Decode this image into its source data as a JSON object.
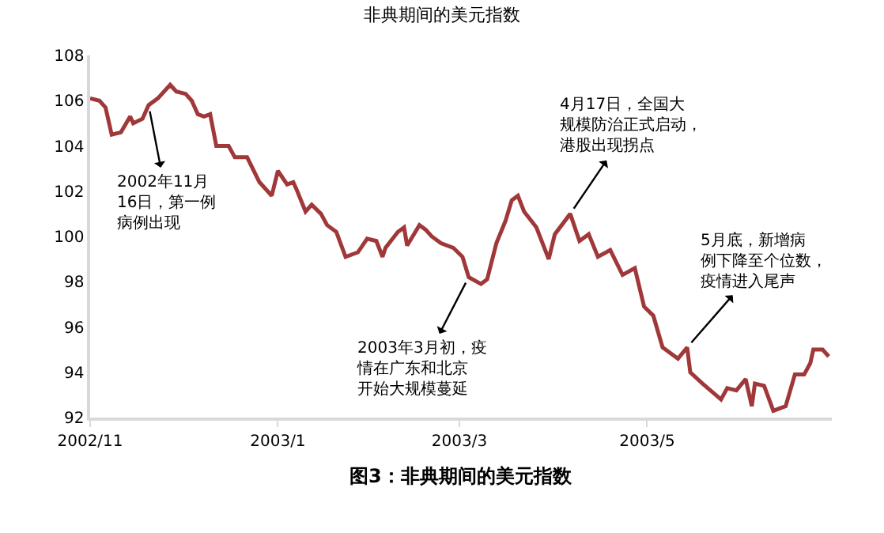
{
  "chart_data": {
    "type": "line",
    "title": "非典期间的美元指数",
    "x": [
      "2002-11-01",
      "2002-11-04",
      "2002-11-06",
      "2002-11-08",
      "2002-11-11",
      "2002-11-14",
      "2002-11-15",
      "2002-11-18",
      "2002-11-20",
      "2002-11-23",
      "2002-11-27",
      "2002-11-29",
      "2002-12-02",
      "2002-12-04",
      "2002-12-06",
      "2002-12-08",
      "2002-12-10",
      "2002-12-12",
      "2002-12-16",
      "2002-12-18",
      "2002-12-22",
      "2002-12-26",
      "2002-12-30",
      "2003-01-01",
      "2003-01-04",
      "2003-01-06",
      "2003-01-07",
      "2003-01-10",
      "2003-01-12",
      "2003-01-15",
      "2003-01-17",
      "2003-01-20",
      "2003-01-23",
      "2003-01-27",
      "2003-01-28",
      "2003-01-30",
      "2003-02-02",
      "2003-02-04",
      "2003-02-05",
      "2003-02-09",
      "2003-02-11",
      "2003-02-12",
      "2003-02-16",
      "2003-02-18",
      "2003-02-20",
      "2003-02-23",
      "2003-02-27",
      "2003-03-02",
      "2003-03-04",
      "2003-03-08",
      "2003-03-10",
      "2003-03-13",
      "2003-03-16",
      "2003-03-18",
      "2003-03-20",
      "2003-03-22",
      "2003-03-26",
      "2003-03-30",
      "2003-04-01",
      "2003-04-06",
      "2003-04-09",
      "2003-04-12",
      "2003-04-15",
      "2003-04-19",
      "2003-04-23",
      "2003-04-27",
      "2003-04-30",
      "2003-05-03",
      "2003-05-06",
      "2003-05-11",
      "2003-05-14",
      "2003-05-15",
      "2003-05-19",
      "2003-05-25",
      "2003-05-27",
      "2003-05-30",
      "2003-06-02",
      "2003-06-04",
      "2003-06-05",
      "2003-06-08",
      "2003-06-11",
      "2003-06-15",
      "2003-06-18",
      "2003-06-21",
      "2003-06-23",
      "2003-06-24",
      "2003-06-27",
      "2003-06-29"
    ],
    "series": [
      {
        "color": "#a0383a",
        "values": [
          106.1,
          106.0,
          105.7,
          104.5,
          104.6,
          105.3,
          105.0,
          105.2,
          105.8,
          106.1,
          106.7,
          106.4,
          106.3,
          106.0,
          105.4,
          105.3,
          105.4,
          104.0,
          104.0,
          103.5,
          103.5,
          102.4,
          101.8,
          102.9,
          102.3,
          102.4,
          102.1,
          101.1,
          101.4,
          101.0,
          100.5,
          100.2,
          99.1,
          99.3,
          99.5,
          99.9,
          99.8,
          99.1,
          99.5,
          100.2,
          100.4,
          99.6,
          100.5,
          100.3,
          100.0,
          99.7,
          99.5,
          99.1,
          98.2,
          97.9,
          98.1,
          99.7,
          100.7,
          101.6,
          101.8,
          101.1,
          100.4,
          99.0,
          100.1,
          101.0,
          99.8,
          100.1,
          99.1,
          99.4,
          98.3,
          98.6,
          96.9,
          96.5,
          95.1,
          94.6,
          95.1,
          94.0,
          93.5,
          92.8,
          93.3,
          93.2,
          93.7,
          92.5,
          93.5,
          93.4,
          92.3,
          92.5,
          93.9,
          93.9,
          94.4,
          95.0,
          95.0,
          94.7
        ]
      }
    ],
    "xlim": [
      "2002-11-01",
      "2003-06-30"
    ],
    "xticks": [
      {
        "value": "2002-11-01",
        "label": "2002/11"
      },
      {
        "value": "2003-01-01",
        "label": "2003/1"
      },
      {
        "value": "2003-03-01",
        "label": "2003/3"
      },
      {
        "value": "2003-05-01",
        "label": "2003/5"
      }
    ],
    "ylim": [
      92,
      108
    ],
    "yticks": [
      92,
      94,
      96,
      98,
      100,
      102,
      104,
      106,
      108
    ],
    "marker": "none",
    "line_style": "solid",
    "annotations": [
      {
        "text": "2002年11月16日，第一例病例出现",
        "x": "2002-11-20",
        "y": 105.8
      },
      {
        "text": "2003年3月初，疫情在广东和北京开始大规模蔓延",
        "x": "2003-03-04",
        "y": 98.2
      },
      {
        "text": "4月17日，全国大规模防治正式启动，港股出现拐点",
        "x": "2003-04-06",
        "y": 101.0
      },
      {
        "text": "5月底，新增病例下降至个位数，疫情进入尾声",
        "x": "2003-05-14",
        "y": 95.1
      },
      "图3：非典期间的美元指数"
    ]
  }
}
